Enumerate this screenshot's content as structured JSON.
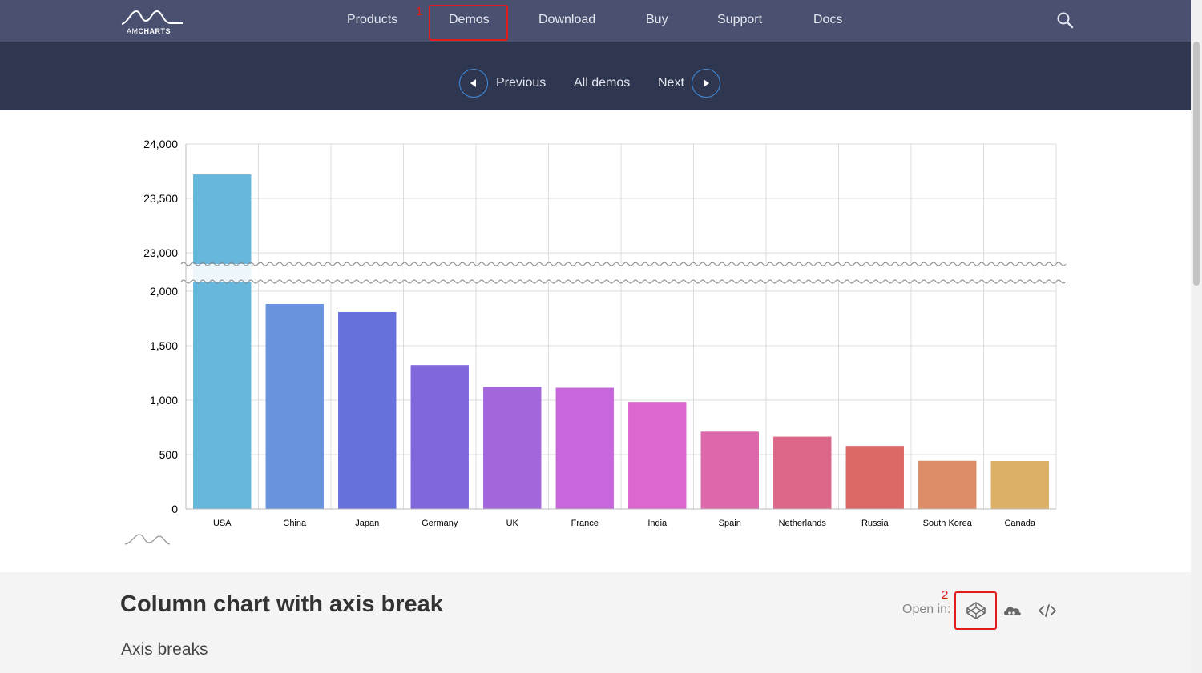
{
  "nav": {
    "logo_am": "AM",
    "logo_charts": "CHARTS",
    "items": [
      {
        "label": "Products"
      },
      {
        "label": "Demos"
      },
      {
        "label": "Download"
      },
      {
        "label": "Buy"
      },
      {
        "label": "Support"
      },
      {
        "label": "Docs"
      }
    ]
  },
  "subnav": {
    "previous": "Previous",
    "all_demos": "All demos",
    "next": "Next"
  },
  "chart_data": {
    "type": "bar",
    "categories": [
      "USA",
      "China",
      "Japan",
      "Germany",
      "UK",
      "France",
      "India",
      "Spain",
      "Netherlands",
      "Russia",
      "South Korea",
      "Canada"
    ],
    "values": [
      23720,
      1882,
      1809,
      1322,
      1122,
      1114,
      984,
      711,
      665,
      580,
      443,
      441
    ],
    "axis_break": {
      "from": 2100,
      "to": 22900
    },
    "yticks": [
      "0",
      "500",
      "1,000",
      "1,500",
      "2,000",
      "23,000",
      "23,500",
      "24,000"
    ],
    "ylim": [
      0,
      24000
    ],
    "colors": [
      "#67b7dc",
      "#6794dc",
      "#6771dc",
      "#8067dc",
      "#a367dc",
      "#c767dc",
      "#dc67ce",
      "#dc67ab",
      "#dc6788",
      "#dc6967",
      "#dc8c67",
      "#dcaf67"
    ],
    "grid": true,
    "title": "",
    "xlabel": "",
    "ylabel": ""
  },
  "info": {
    "title": "Column chart with axis break",
    "subtitle": "Axis breaks",
    "open_in": "Open in:"
  },
  "annotations": [
    "1",
    "2"
  ],
  "icons": {
    "search": "search-icon",
    "codepen": "codepen-icon",
    "cloud": "cloud-icon",
    "code": "code-icon"
  }
}
